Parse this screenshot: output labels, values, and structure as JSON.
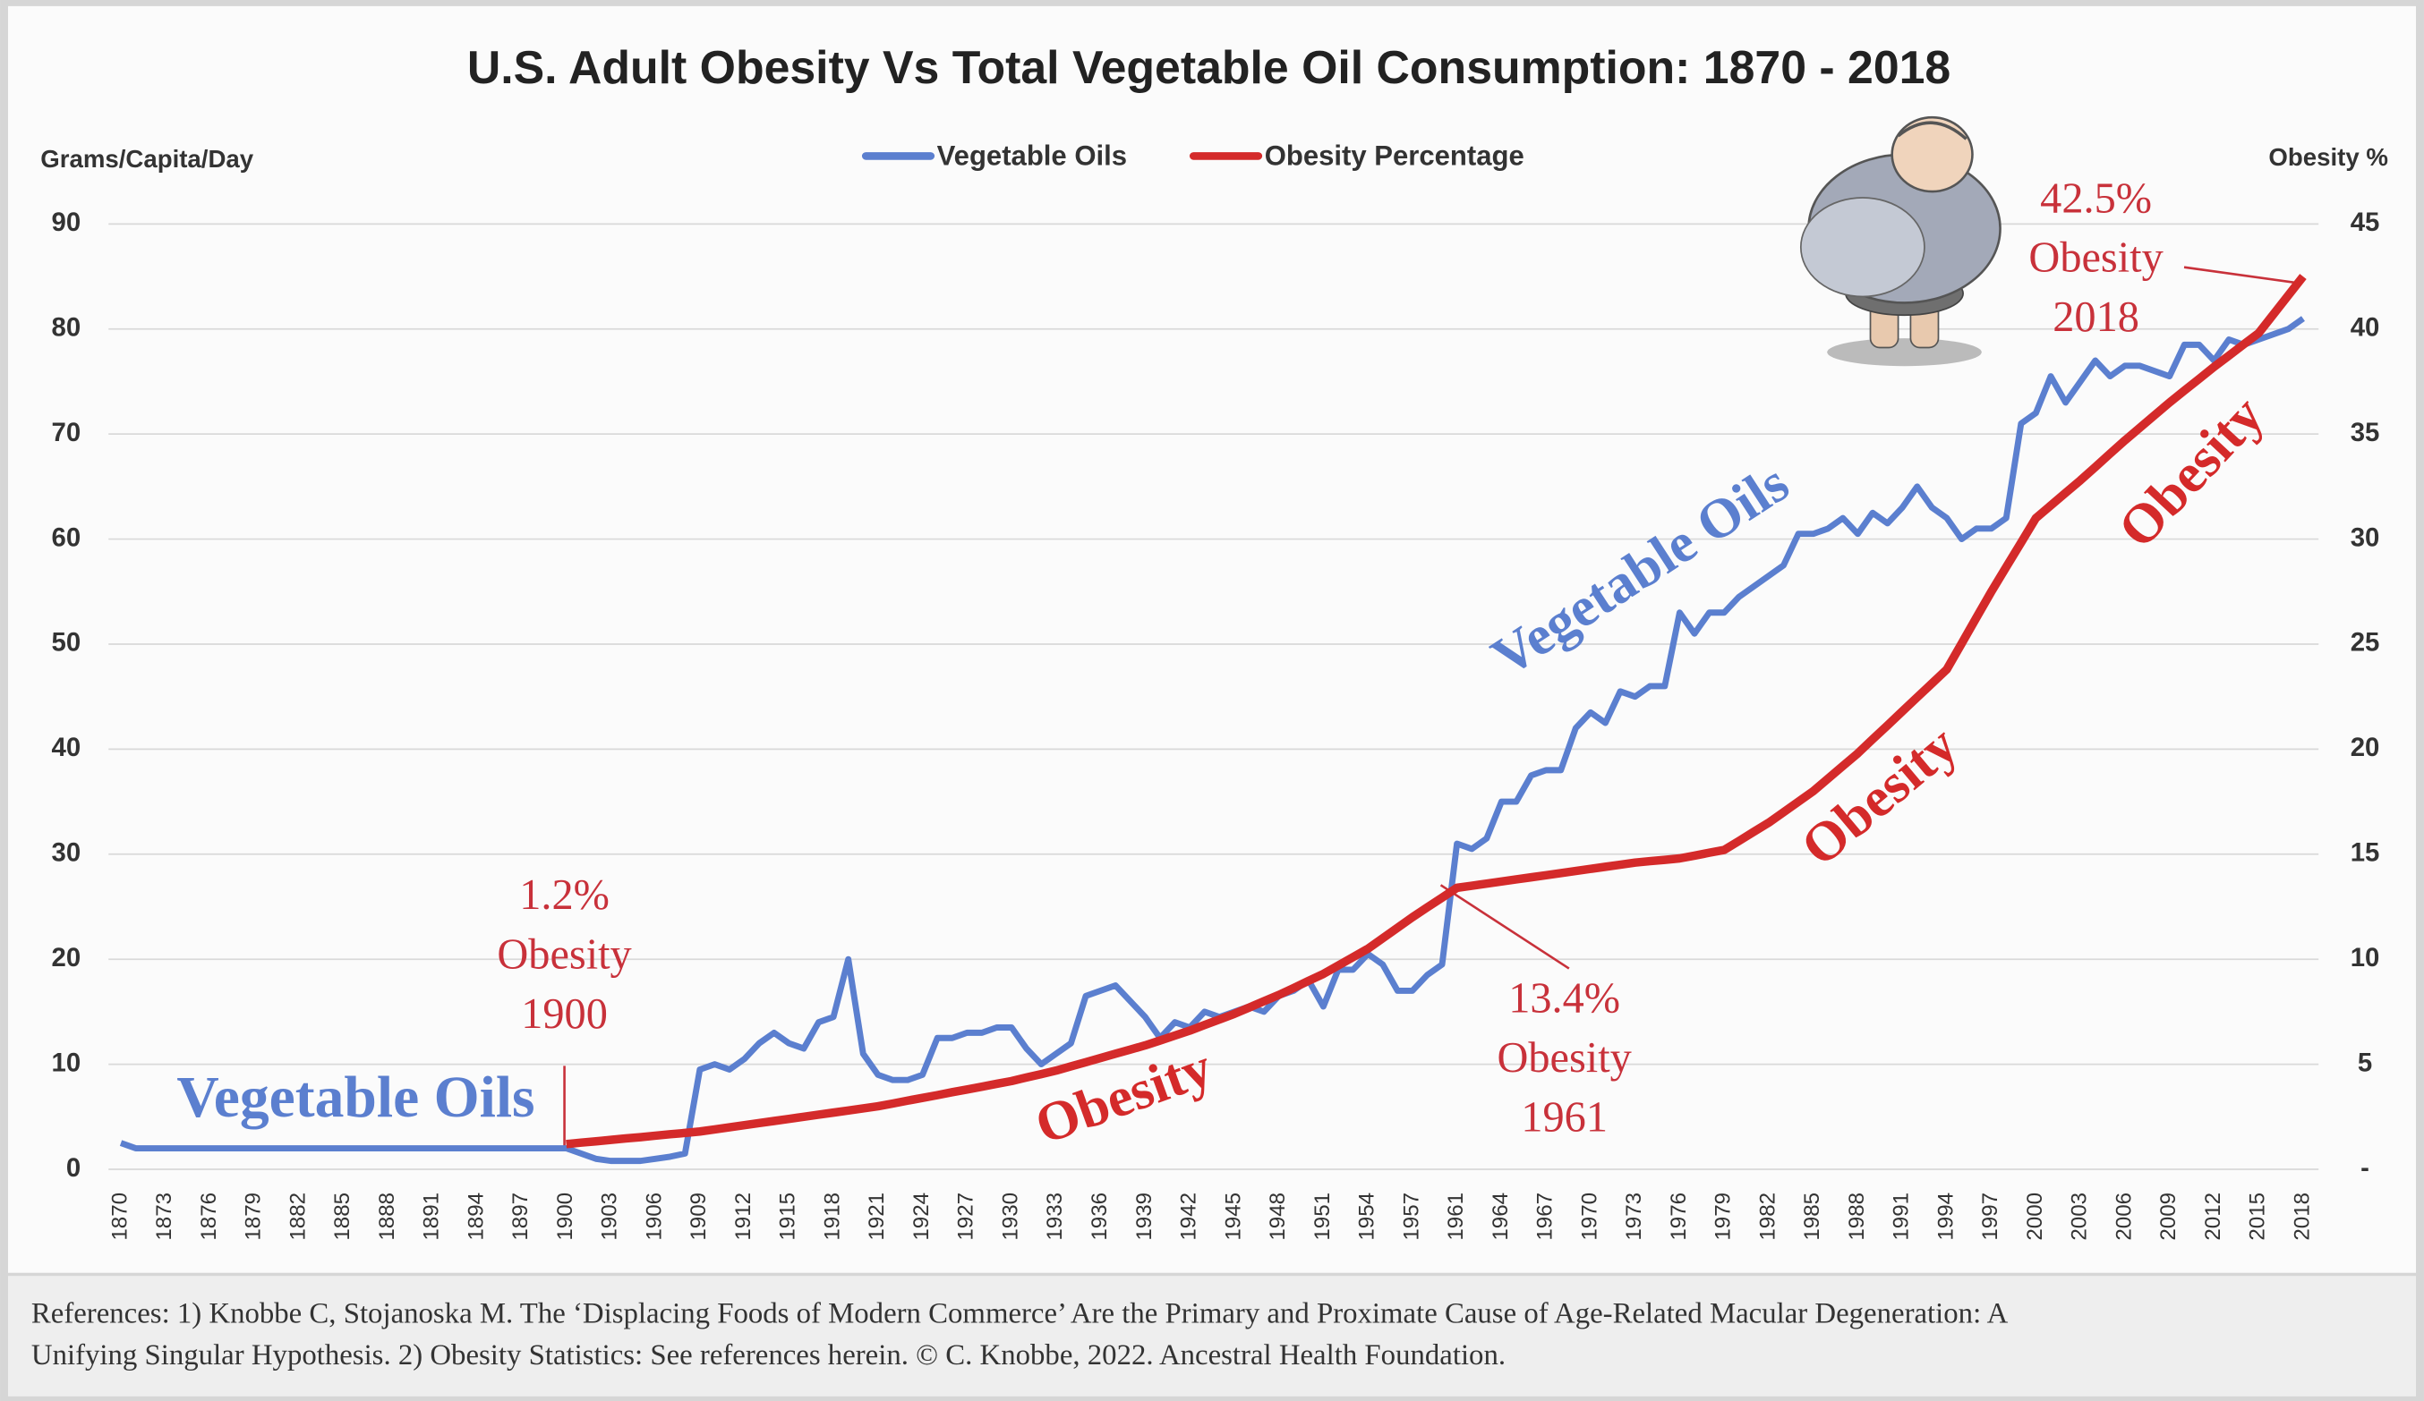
{
  "chart_data": {
    "type": "line",
    "title": "U.S. Adult Obesity Vs Total Vegetable Oil Consumption: 1870 - 2018",
    "y_label": "Grams/Capita/Day",
    "y2_label": "Obesity %",
    "categories": [
      "1870",
      null,
      null,
      "1873",
      null,
      null,
      "1876",
      null,
      null,
      "1879",
      null,
      null,
      "1882",
      null,
      null,
      "1885",
      null,
      null,
      "1888",
      null,
      null,
      "1891",
      null,
      null,
      "1894",
      null,
      null,
      "1897",
      null,
      null,
      "1900",
      null,
      null,
      "1903",
      null,
      null,
      "1906",
      null,
      null,
      "1909",
      null,
      null,
      "1912",
      null,
      null,
      "1915",
      null,
      null,
      "1918",
      null,
      null,
      "1921",
      null,
      null,
      "1924",
      null,
      null,
      "1927",
      null,
      null,
      "1930",
      null,
      null,
      "1933",
      null,
      null,
      "1936",
      null,
      null,
      "1939",
      null,
      null,
      "1942",
      null,
      null,
      "1945",
      null,
      null,
      "1948",
      null,
      null,
      "1951",
      null,
      null,
      "1954",
      null,
      null,
      "1957",
      null,
      null,
      "1961",
      null,
      null,
      "1964",
      null,
      null,
      "1967",
      null,
      null,
      "1970",
      null,
      null,
      "1973",
      null,
      null,
      "1976",
      null,
      null,
      "1979",
      null,
      null,
      "1982",
      null,
      null,
      "1985",
      null,
      null,
      "1988",
      null,
      null,
      "1991",
      null,
      null,
      "1994",
      null,
      null,
      "1997",
      null,
      null,
      "2000",
      null,
      null,
      "2003",
      null,
      null,
      "2006",
      null,
      null,
      "2009",
      null,
      null,
      "2012",
      null,
      null,
      "2015",
      null,
      null,
      "2018"
    ],
    "series": [
      {
        "name": "Vegetable Oils",
        "color": "#5b7fcf",
        "axis": "y",
        "values": [
          2.5,
          2,
          2,
          2,
          2,
          2,
          2,
          2,
          2,
          2,
          2,
          2,
          2,
          2,
          2,
          2,
          2,
          2,
          2,
          2,
          2,
          2,
          2,
          2,
          2,
          2,
          2,
          2,
          2,
          2,
          2,
          1.5,
          1,
          0.8,
          0.8,
          0.8,
          1,
          1.2,
          1.5,
          9.5,
          10,
          9.5,
          10.5,
          12,
          13,
          12,
          11.5,
          14,
          14.5,
          20,
          11,
          9,
          8.5,
          8.5,
          9,
          12.5,
          12.5,
          13,
          13,
          13.5,
          13.5,
          11.5,
          10,
          11,
          12,
          16.5,
          17,
          17.5,
          16,
          14.5,
          12.5,
          14,
          13.5,
          15,
          14.5,
          15,
          15.5,
          15,
          16.5,
          17,
          18,
          15.5,
          19,
          19,
          20.5,
          19.5,
          17,
          17,
          18.5,
          19.5,
          31,
          30.5,
          31.5,
          35,
          35,
          37.5,
          38,
          38,
          42,
          43.5,
          42.5,
          45.5,
          45,
          46,
          46,
          53,
          51,
          53,
          53,
          54.5,
          55.5,
          56.5,
          57.5,
          60.5,
          60.5,
          61,
          62,
          60.5,
          62.5,
          61.5,
          63,
          65,
          63,
          62,
          60,
          61,
          61,
          62,
          71,
          72,
          75.5,
          73,
          75,
          77,
          75.5,
          76.5,
          76.5,
          76,
          75.5,
          78.5,
          78.5,
          77,
          79,
          78.5,
          79,
          79.5,
          80,
          81
        ]
      },
      {
        "name": "Obesity Percentage",
        "color": "#d42a2a",
        "axis": "y2",
        "values": [
          null,
          null,
          null,
          null,
          null,
          null,
          null,
          null,
          null,
          null,
          null,
          null,
          null,
          null,
          null,
          null,
          null,
          null,
          null,
          null,
          null,
          null,
          null,
          null,
          null,
          null,
          null,
          null,
          null,
          null,
          1.2,
          1.27,
          1.33,
          1.4,
          1.47,
          1.53,
          1.6,
          1.67,
          1.73,
          1.8,
          1.9,
          2.0,
          2.1,
          2.2,
          2.3,
          2.4,
          2.5,
          2.6,
          2.7,
          2.8,
          2.9,
          3.0,
          3.13,
          3.27,
          3.4,
          3.53,
          3.67,
          3.8,
          3.93,
          4.07,
          4.2,
          4.37,
          4.53,
          4.7,
          4.9,
          5.1,
          5.3,
          5.5,
          5.7,
          5.9,
          6.13,
          6.37,
          6.6,
          6.87,
          7.13,
          7.4,
          7.7,
          8.0,
          8.3,
          8.63,
          8.97,
          9.3,
          9.7,
          10.1,
          10.5,
          11.0,
          11.5,
          12.0,
          12.47,
          12.93,
          13.4,
          13.5,
          13.6,
          13.7,
          13.8,
          13.9,
          14.0,
          14.1,
          14.2,
          14.3,
          14.4,
          14.5,
          14.6,
          14.67,
          14.73,
          14.8,
          14.93,
          15.07,
          15.2,
          15.63,
          16.07,
          16.5,
          17,
          17.5,
          18,
          18.6,
          19.2,
          19.8,
          20.47,
          21.13,
          21.8,
          22.47,
          23.13,
          23.8,
          25.03,
          26.27,
          27.5,
          28.67,
          29.83,
          31,
          31.6,
          32.2,
          32.8,
          33.43,
          34.07,
          34.7,
          35.3,
          35.9,
          36.5,
          37.07,
          37.63,
          38.2,
          38.73,
          39.27,
          39.8,
          40.7,
          41.6,
          42.5
        ]
      }
    ],
    "ylim": [
      0,
      90
    ],
    "yticks": [
      0,
      10,
      20,
      30,
      40,
      50,
      60,
      70,
      80,
      90
    ],
    "y2lim": [
      0,
      45
    ],
    "y2ticks": [
      {
        "value": 0,
        "label": "-"
      },
      5,
      10,
      15,
      20,
      25,
      30,
      35,
      40,
      45
    ],
    "grid": true,
    "legend": "top",
    "annotations": [
      {
        "lines": [
          "1.2%",
          "Obesity",
          "1900"
        ]
      },
      {
        "lines": [
          "13.4%",
          "Obesity",
          "1961"
        ]
      },
      {
        "lines": [
          "42.5%",
          "Obesity",
          "2018"
        ]
      }
    ],
    "series_labels": [
      "Vegetable Oils",
      "Vegetable Oils",
      "Obesity",
      "Obesity",
      "Obesity"
    ],
    "references": [
      "References: 1) Knobbe C,  Stojanoska M. The ‘Displacing Foods of Modern Commerce’ Are the Primary and Proximate Cause of Age-Related Macular Degeneration: A",
      "Unifying Singular Hypothesis. 2) Obesity Statistics: See references herein. © C. Knobbe, 2022. Ancestral Health Foundation."
    ]
  }
}
